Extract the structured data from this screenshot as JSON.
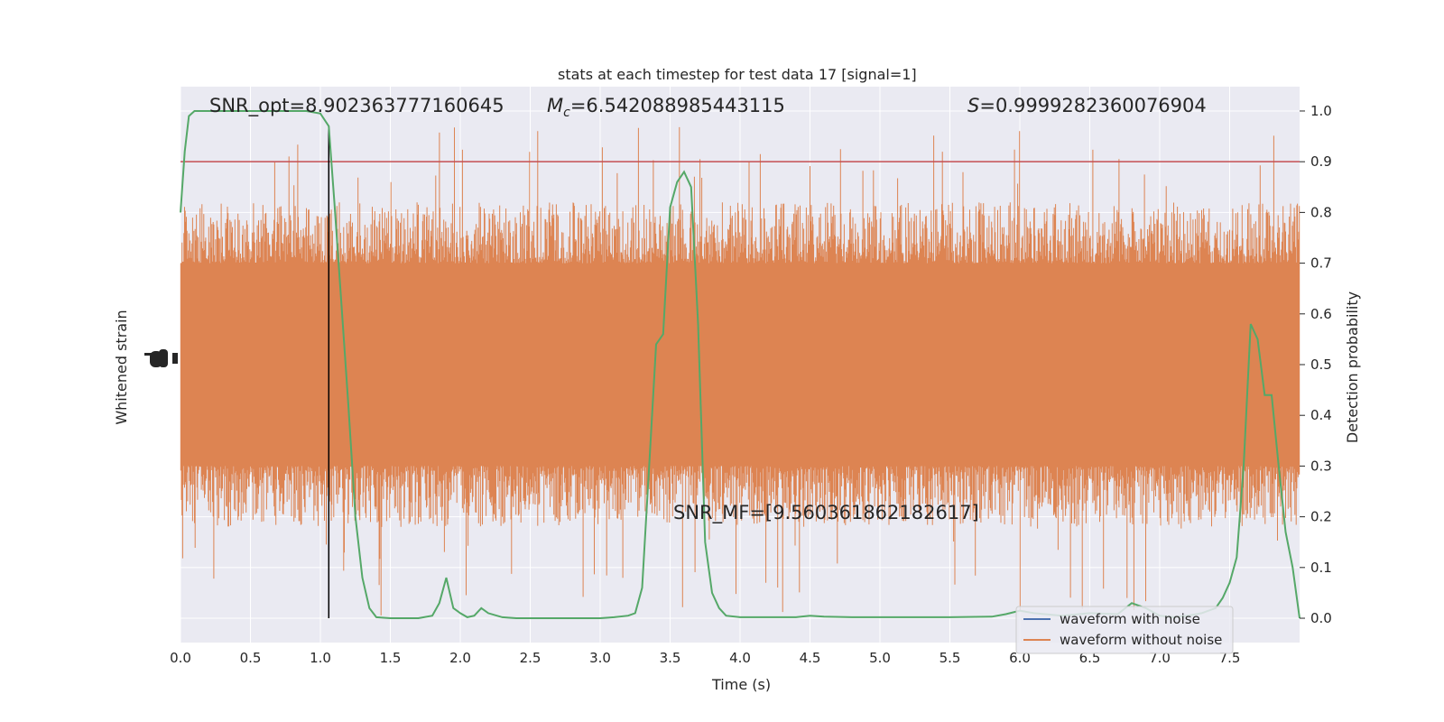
{
  "chart_data": {
    "type": "line",
    "title": "stats at each timestep for test data 17 [signal=1]",
    "xlabel": "Time (s)",
    "ylabel_left": "Whitened strain",
    "ylabel_right": "Detection probability",
    "xlim": [
      0.0,
      8.0
    ],
    "ylim_right": [
      -0.048,
      1.048
    ],
    "xticks": [
      "0.0",
      "0.5",
      "1.0",
      "1.5",
      "2.0",
      "2.5",
      "3.0",
      "3.5",
      "4.0",
      "4.5",
      "5.0",
      "5.5",
      "6.0",
      "6.5",
      "7.0",
      "7.5"
    ],
    "yticks_right": [
      "0.0",
      "0.1",
      "0.2",
      "0.3",
      "0.4",
      "0.5",
      "0.6",
      "0.7",
      "0.8",
      "0.9",
      "1.0"
    ],
    "left_tick_labels": "-1.0 0.0 1.0 (overlapping)",
    "grid": true,
    "legend_placement": "lower-right",
    "annotations": {
      "snr_opt": "SNR_opt=8.902363777160645",
      "mc": "M",
      "mc_sub": "c",
      "mc_value": "=6.542088985443115",
      "s": "S",
      "s_value": "=0.9999282360076904",
      "snr_mf": "SNR_MF=[9.560361862182617]"
    },
    "threshold": {
      "y": 0.9,
      "color": "#c44e52"
    },
    "vline_x": 1.06,
    "strain_band": {
      "color": "#dd8452",
      "y_low": 0.3,
      "y_high": 0.7,
      "spike_min": 0.0,
      "spike_max": 0.97
    },
    "series": [
      {
        "name": "waveform with noise",
        "color": "#4c72b0"
      },
      {
        "name": "waveform without noise",
        "color": "#dd8452"
      },
      {
        "color": "#55a868",
        "x": [
          0.0,
          0.03,
          0.06,
          0.1,
          0.15,
          0.2,
          0.3,
          0.4,
          0.5,
          0.6,
          0.7,
          0.8,
          0.9,
          1.0,
          1.06,
          1.1,
          1.15,
          1.2,
          1.25,
          1.3,
          1.35,
          1.4,
          1.5,
          1.6,
          1.7,
          1.8,
          1.85,
          1.9,
          1.95,
          2.0,
          2.05,
          2.1,
          2.15,
          2.2,
          2.3,
          2.4,
          2.6,
          2.8,
          3.0,
          3.1,
          3.2,
          3.25,
          3.3,
          3.35,
          3.4,
          3.45,
          3.5,
          3.55,
          3.6,
          3.65,
          3.7,
          3.75,
          3.8,
          3.85,
          3.9,
          4.0,
          4.2,
          4.4,
          4.5,
          4.6,
          4.8,
          5.0,
          5.5,
          5.8,
          5.9,
          6.0,
          6.1,
          6.3,
          6.5,
          6.7,
          6.8,
          6.9,
          7.0,
          7.1,
          7.2,
          7.3,
          7.4,
          7.45,
          7.5,
          7.55,
          7.6,
          7.65,
          7.7,
          7.75,
          7.8,
          7.85,
          7.9,
          7.95,
          8.0
        ],
        "y": [
          0.8,
          0.92,
          0.99,
          1.0,
          1.0,
          1.0,
          1.0,
          1.0,
          1.0,
          1.0,
          1.0,
          1.0,
          1.0,
          0.995,
          0.97,
          0.82,
          0.62,
          0.42,
          0.2,
          0.08,
          0.02,
          0.002,
          0.0,
          0.0,
          0.0,
          0.005,
          0.03,
          0.08,
          0.02,
          0.01,
          0.002,
          0.005,
          0.02,
          0.01,
          0.002,
          0.0,
          0.0,
          0.0,
          0.0,
          0.002,
          0.005,
          0.01,
          0.06,
          0.3,
          0.54,
          0.56,
          0.81,
          0.86,
          0.88,
          0.85,
          0.58,
          0.15,
          0.05,
          0.02,
          0.005,
          0.002,
          0.002,
          0.002,
          0.005,
          0.003,
          0.002,
          0.002,
          0.002,
          0.003,
          0.008,
          0.015,
          0.01,
          0.005,
          0.01,
          0.008,
          0.03,
          0.02,
          0.005,
          0.002,
          0.005,
          0.01,
          0.02,
          0.04,
          0.07,
          0.12,
          0.3,
          0.58,
          0.55,
          0.44,
          0.44,
          0.3,
          0.17,
          0.1,
          0.0
        ]
      }
    ]
  }
}
